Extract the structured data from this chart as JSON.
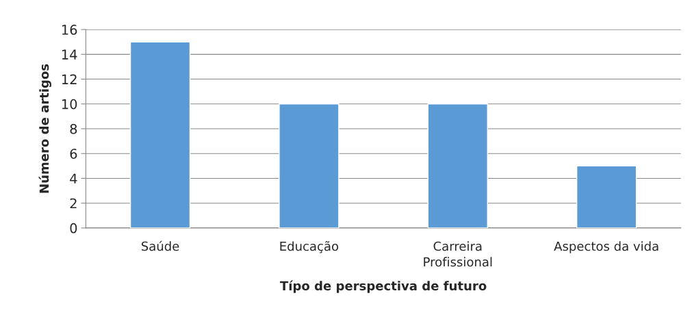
{
  "chart_data": {
    "type": "bar",
    "xlabel": "Típo de perspectiva de futuro",
    "ylabel": "Número de artigos",
    "categories": [
      "Saúde",
      "Educação",
      "Carreira\nProfissional",
      "Aspectos da vida"
    ],
    "values": [
      15,
      10,
      10,
      5
    ],
    "color": "#5b9bd5",
    "ylim": [
      0,
      16
    ],
    "yticks": [
      0,
      2,
      4,
      6,
      8,
      10,
      12,
      14,
      16
    ],
    "grid": "y"
  }
}
